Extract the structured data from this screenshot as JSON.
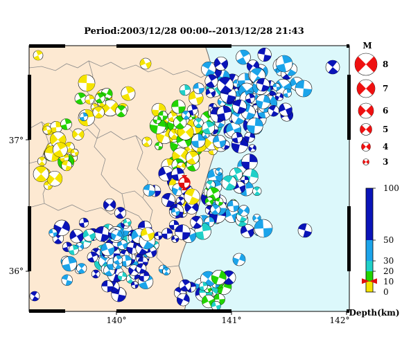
{
  "title": "Period:2003/12/28 00:00--2013/12/28 21:43",
  "map": {
    "lon_ticks": [
      "140°",
      "141°",
      "142°"
    ],
    "lat_ticks": [
      "37°",
      "36°"
    ],
    "colors": {
      "land": "#fde9d2",
      "sea": "#dcf8fb",
      "border": "#8a8a8a",
      "coast": "#666666"
    }
  },
  "magnitude_legend": {
    "title": "M",
    "items": [
      "8",
      "7",
      "6",
      "5",
      "4",
      "3"
    ],
    "color": "#ee1111"
  },
  "depth_legend": {
    "title": "Depth(km)",
    "ticks": [
      "100",
      "50",
      "30",
      "20",
      "10",
      "0"
    ],
    "colors": {
      "0-10": "#f5e400",
      "10-20": "#22d400",
      "20-30": "#20d0c8",
      "30-50": "#1ca4ea",
      "50-100": "#0a14b8"
    },
    "marker_color": "#e01010"
  }
}
